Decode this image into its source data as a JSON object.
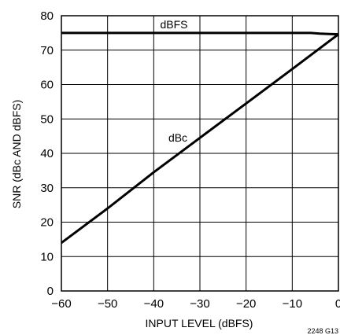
{
  "chart_data": {
    "type": "line",
    "xlabel": "INPUT LEVEL (dBFS)",
    "ylabel": "SNR (dBc AND dBFS)",
    "xlim": [
      -60,
      0
    ],
    "ylim": [
      0,
      80
    ],
    "xticks": [
      -60,
      -50,
      -40,
      -30,
      -20,
      -10,
      0
    ],
    "xtick_labels": [
      "−60",
      "−50",
      "−40",
      "−30",
      "−20",
      "−10",
      "0"
    ],
    "yticks": [
      0,
      10,
      20,
      30,
      40,
      50,
      60,
      70,
      80
    ],
    "ytick_labels": [
      "0",
      "10",
      "20",
      "30",
      "40",
      "50",
      "60",
      "70",
      "80"
    ],
    "grid": true,
    "series": [
      {
        "name": "dBFS",
        "x": [
          -60,
          -50,
          -40,
          -30,
          -20,
          -10,
          -6,
          -4,
          -2,
          0
        ],
        "y": [
          75,
          75,
          75,
          75,
          75,
          75,
          75,
          74.8,
          74.7,
          74.6
        ]
      },
      {
        "name": "dBc",
        "x": [
          -60,
          -50,
          -40,
          -30,
          -20,
          -10,
          0
        ],
        "y": [
          14,
          24,
          34.5,
          44.5,
          54.5,
          64.5,
          74.6
        ]
      }
    ],
    "figure_id": "2248 G13"
  }
}
